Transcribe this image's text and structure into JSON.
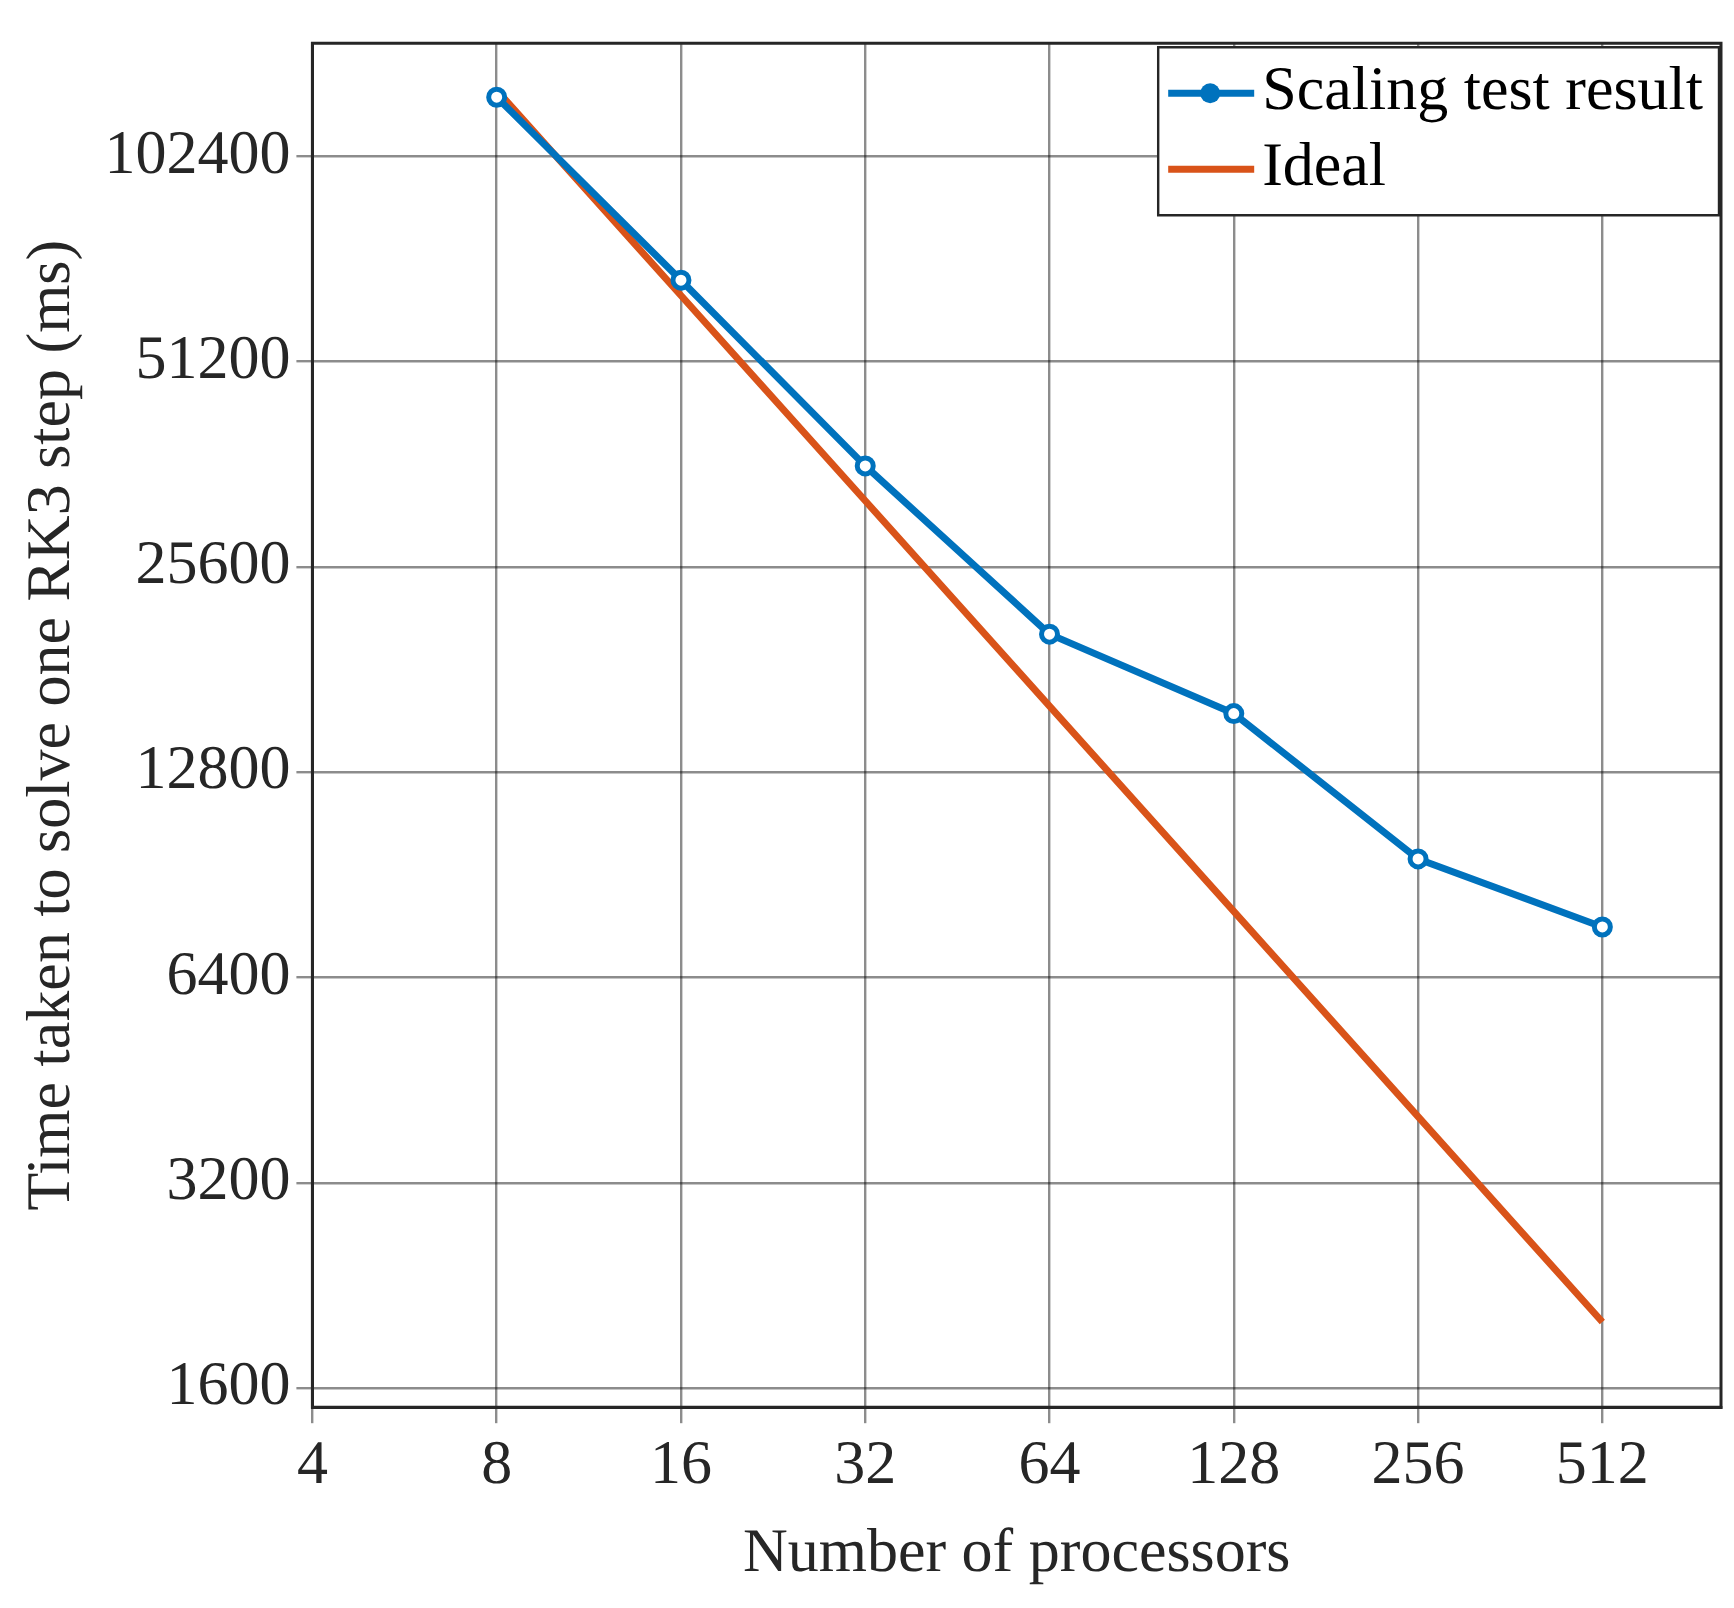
{
  "chart_data": {
    "type": "line",
    "xlabel": "Number of processors",
    "ylabel": "Time taken to solve one RK3 step (ms)",
    "log": "xy",
    "grid": true,
    "legend": "top right",
    "xlim": [
      4,
      800
    ],
    "xticks": [
      4,
      8,
      16,
      32,
      64,
      128,
      256,
      512
    ],
    "ylim": [
      1500,
      150000
    ],
    "yticks": [
      1600,
      3200,
      6400,
      12800,
      25600,
      51200,
      102400
    ],
    "series": [
      {
        "name": "Scaling test result",
        "color": "#0072bd",
        "marker": "circle",
        "x": [
          8,
          16,
          32,
          64,
          128,
          256,
          512
        ],
        "values": [
          125000,
          67400,
          36000,
          20400,
          15600,
          9550,
          7590
        ]
      },
      {
        "name": "Ideal",
        "color": "#d95319",
        "marker": "none",
        "x": [
          8,
          16,
          32,
          64,
          128,
          256,
          512
        ],
        "values": [
          128000,
          64000,
          32000,
          16000,
          8000,
          4000,
          2000
        ]
      }
    ]
  }
}
